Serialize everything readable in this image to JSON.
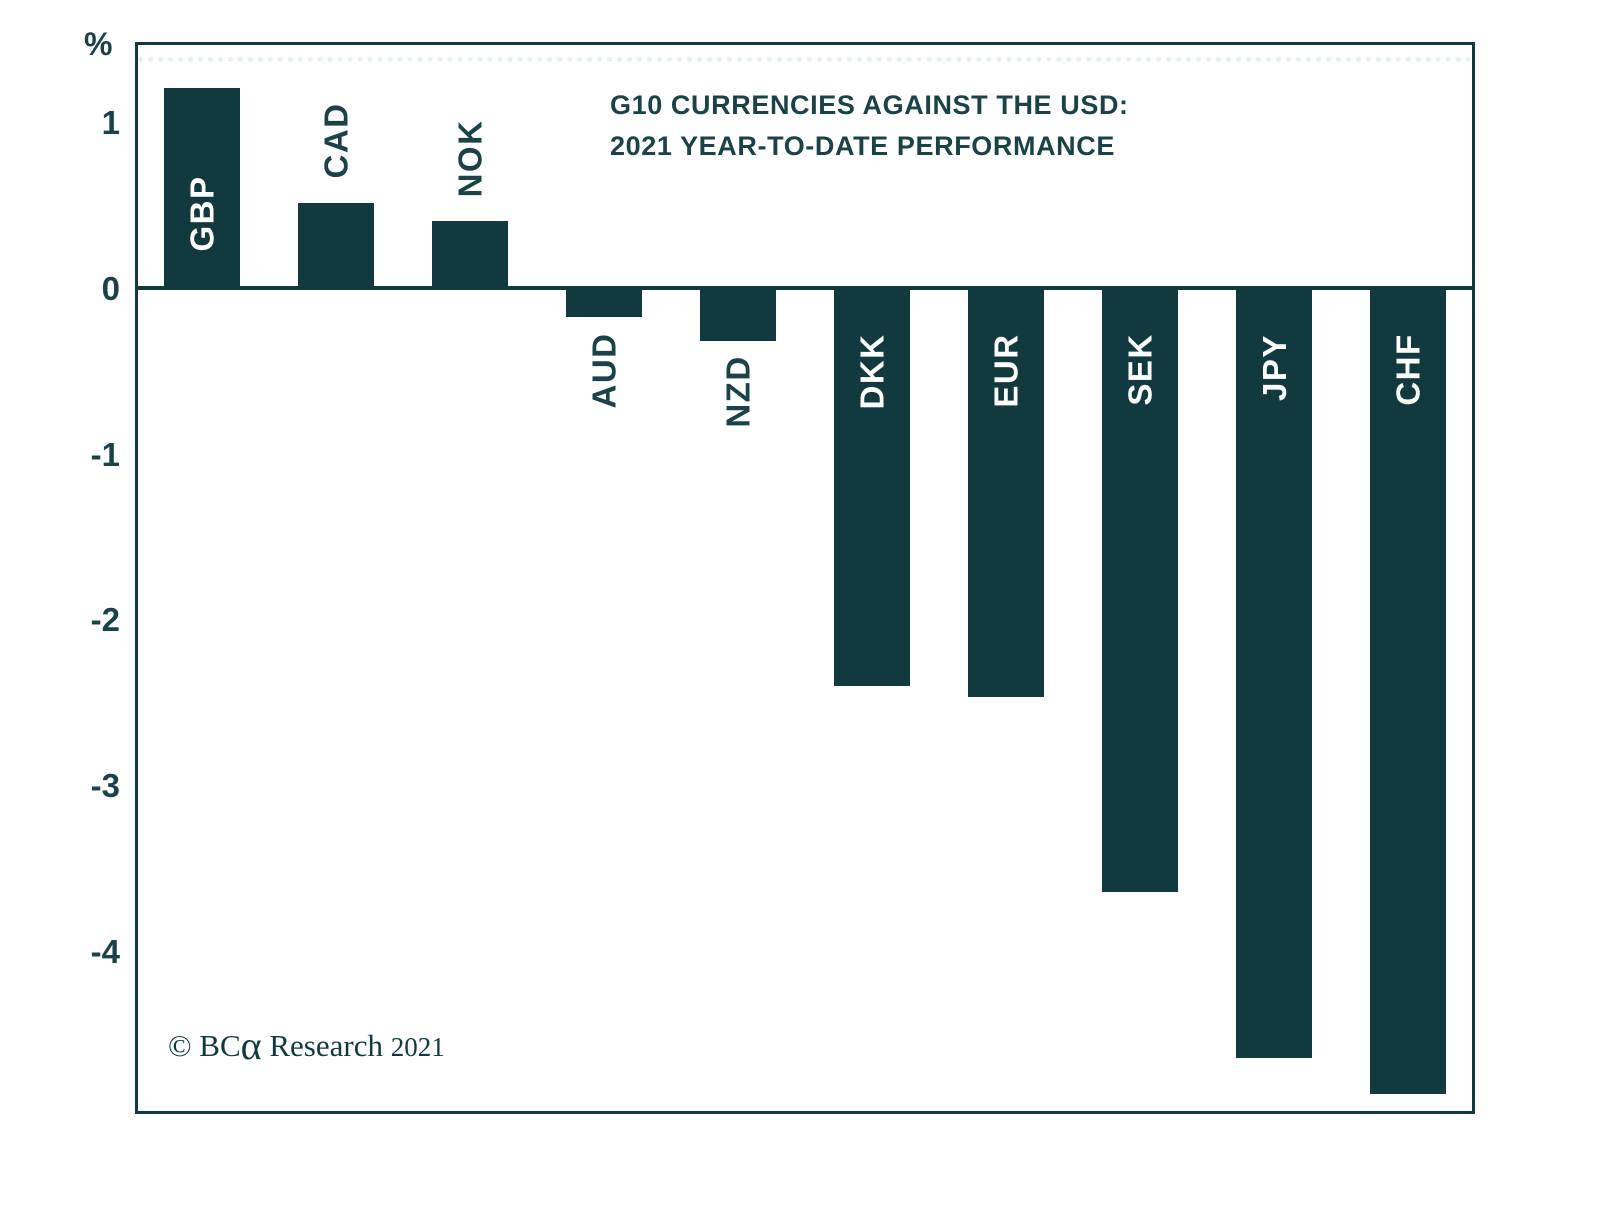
{
  "chart_data": {
    "type": "bar",
    "title_lines": [
      "G10 CURRENCIES AGAINST THE USD:",
      "2021 YEAR-TO-DATE PERFORMANCE"
    ],
    "unit_label": "%",
    "categories": [
      "GBP",
      "CAD",
      "NOK",
      "AUD",
      "NZD",
      "DKK",
      "EUR",
      "SEK",
      "JPY",
      "CHF"
    ],
    "values": [
      1.2,
      0.51,
      0.4,
      -0.18,
      -0.32,
      -2.4,
      -2.47,
      -3.64,
      -4.64,
      -4.86
    ],
    "yticks": [
      1,
      0,
      -1,
      -2,
      -3,
      -4
    ],
    "ylim": [
      -4.98,
      1.48
    ],
    "grid": "off",
    "top_dotted_line_value": 1.39,
    "legend": "none",
    "xlabel": "",
    "ylabel": "%",
    "bar_color": "#123A3E",
    "text_color": "#1B4347",
    "inside_label_color": "#FFFFFF"
  },
  "footer": {
    "copyright_prefix": "© BC",
    "copyright_alpha": "α",
    "copyright_mid": " Research ",
    "copyright_year": "2021"
  }
}
